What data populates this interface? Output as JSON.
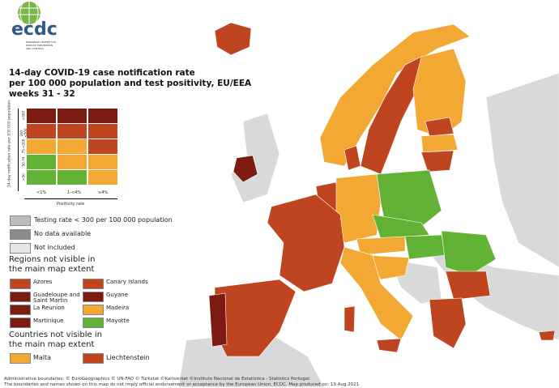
{
  "logo": {
    "text": "ecdc",
    "subtitle": "EUROPEAN CENTRE FOR DISEASE PREVENTION AND CONTROL"
  },
  "title": [
    "14-day COVID-19 case notification rate",
    "per 100 000 population and test positivity, EU/EEA",
    "weeks 31 - 32"
  ],
  "colors": {
    "dark_red": "#7d1a12",
    "red": "#bf4420",
    "orange": "#f2a832",
    "green": "#62b335",
    "grey_testing": "#bdbdbd",
    "no_data": "#8a8a8a",
    "not_included": "#e6e6e6",
    "sea": "#ffffff"
  },
  "matrix": {
    "y_axis_label": "14-day notification rate per 100 000 population",
    "x_axis_label": "Positivity rate",
    "columns": [
      "<1%",
      "1-<4%",
      "≥4%"
    ],
    "rows": [
      ">500",
      "200-<500",
      "75-<200",
      "50-74",
      "<50"
    ],
    "cells": [
      [
        "dark_red",
        "dark_red",
        "dark_red"
      ],
      [
        "red",
        "red",
        "red"
      ],
      [
        "orange",
        "orange",
        "red"
      ],
      [
        "green",
        "orange",
        "orange"
      ],
      [
        "green",
        "green",
        "orange"
      ]
    ]
  },
  "legend": [
    {
      "label": "Testing rate < 300 per 100 000 population",
      "color": "grey_testing"
    },
    {
      "label": "No data available",
      "color": "no_data"
    },
    {
      "label": "Not included",
      "color": "not_included"
    }
  ],
  "regions_heading": "Regions not visible in the main map extent",
  "regions": [
    {
      "label": "Azores",
      "color": "red"
    },
    {
      "label": "Canary Islands",
      "color": "red"
    },
    {
      "label": "Guadeloupe and Saint Martin",
      "color": "dark_red"
    },
    {
      "label": "Guyane",
      "color": "dark_red"
    },
    {
      "label": "La Reunion",
      "color": "dark_red"
    },
    {
      "label": "Madeira",
      "color": "orange"
    },
    {
      "label": "Martinique",
      "color": "dark_red"
    },
    {
      "label": "Mayotte",
      "color": "green"
    }
  ],
  "countries_heading": "Countries not visible in the main map extent",
  "countries": [
    {
      "label": "Malta",
      "color": "orange"
    },
    {
      "label": "Liechtenstein",
      "color": "red"
    }
  ],
  "footer": [
    "Administrative boundaries: © EuroGeographics © UN-FAO © Turkstat ©Kartverket ©Instituto Nacional de Estatística - Statistics Portugal.",
    "The boundaries and names shown on this map do not imply official endorsement or acceptance by the European Union. ECDC. Map produced on: 19 Aug 2021"
  ]
}
